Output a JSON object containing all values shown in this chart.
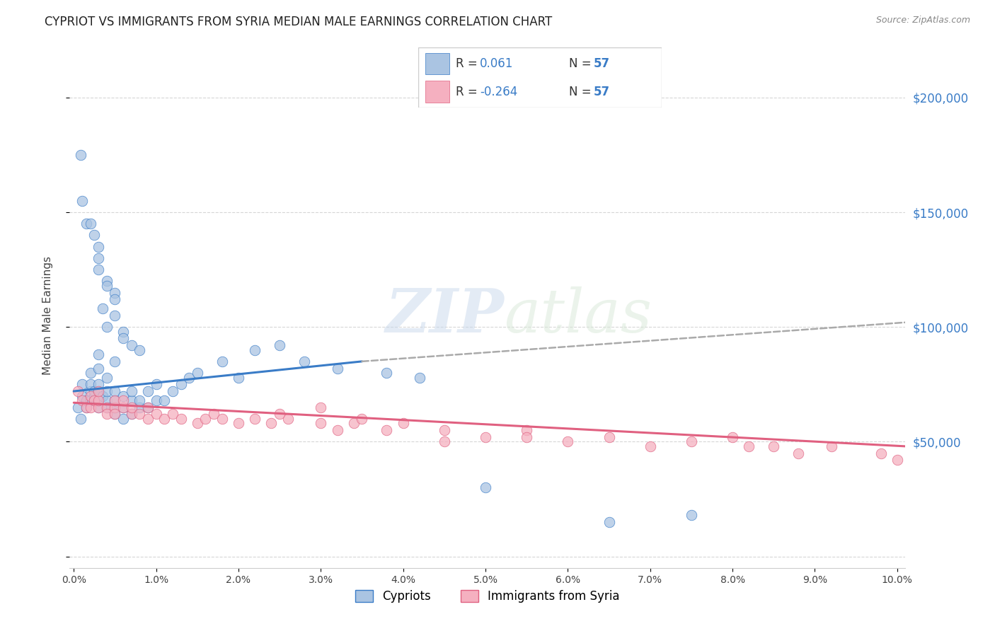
{
  "title": "CYPRIOT VS IMMIGRANTS FROM SYRIA MEDIAN MALE EARNINGS CORRELATION CHART",
  "source": "Source: ZipAtlas.com",
  "ylabel": "Median Male Earnings",
  "yticks": [
    0,
    50000,
    100000,
    150000,
    200000
  ],
  "ytick_labels": [
    "",
    "$50,000",
    "$100,000",
    "$150,000",
    "$200,000"
  ],
  "xmin": -0.0005,
  "xmax": 0.101,
  "ymin": -5000,
  "ymax": 215000,
  "legend_r1": "0.061",
  "legend_n1": "57",
  "legend_r2": "-0.264",
  "legend_n2": "57",
  "watermark_zip": "ZIP",
  "watermark_atlas": "atlas",
  "color_blue": "#aac4e2",
  "color_pink": "#f5b0c0",
  "color_blue_line": "#3a7cc7",
  "color_pink_line": "#e06080",
  "color_dashed": "#aaaaaa",
  "color_rvalue": "#3a7cc7",
  "label_cypriot": "Cypriots",
  "label_syria": "Immigrants from Syria",
  "cypriot_x": [
    0.0005,
    0.0008,
    0.001,
    0.001,
    0.0015,
    0.0015,
    0.002,
    0.002,
    0.002,
    0.002,
    0.0025,
    0.0025,
    0.0025,
    0.003,
    0.003,
    0.003,
    0.003,
    0.003,
    0.0035,
    0.004,
    0.004,
    0.004,
    0.004,
    0.0045,
    0.005,
    0.005,
    0.005,
    0.005,
    0.005,
    0.006,
    0.006,
    0.006,
    0.007,
    0.007,
    0.007,
    0.008,
    0.008,
    0.009,
    0.009,
    0.01,
    0.01,
    0.011,
    0.012,
    0.013,
    0.014,
    0.015,
    0.018,
    0.02,
    0.022,
    0.025,
    0.028,
    0.032,
    0.038,
    0.042,
    0.05,
    0.065,
    0.075
  ],
  "cypriot_y": [
    65000,
    60000,
    75000,
    70000,
    65000,
    68000,
    72000,
    68000,
    75000,
    80000,
    70000,
    68000,
    72000,
    65000,
    68000,
    72000,
    75000,
    82000,
    70000,
    65000,
    68000,
    72000,
    78000,
    65000,
    62000,
    65000,
    68000,
    72000,
    85000,
    60000,
    65000,
    70000,
    62000,
    68000,
    72000,
    65000,
    68000,
    65000,
    72000,
    68000,
    75000,
    68000,
    72000,
    75000,
    78000,
    80000,
    85000,
    78000,
    90000,
    92000,
    85000,
    82000,
    80000,
    78000,
    30000,
    15000,
    18000
  ],
  "cypriot_y_outliers": [
    175000,
    155000,
    145000,
    145000,
    140000,
    135000,
    130000,
    125000,
    120000,
    118000,
    115000,
    112000,
    108000,
    105000,
    100000,
    98000,
    95000,
    92000,
    90000,
    88000
  ],
  "cypriot_x_outliers": [
    0.0008,
    0.001,
    0.0015,
    0.002,
    0.0025,
    0.003,
    0.003,
    0.003,
    0.004,
    0.004,
    0.005,
    0.005,
    0.0035,
    0.005,
    0.004,
    0.006,
    0.006,
    0.007,
    0.008,
    0.003
  ],
  "syria_x": [
    0.0005,
    0.001,
    0.0015,
    0.002,
    0.002,
    0.0025,
    0.003,
    0.003,
    0.003,
    0.004,
    0.004,
    0.005,
    0.005,
    0.005,
    0.006,
    0.006,
    0.007,
    0.007,
    0.008,
    0.009,
    0.009,
    0.01,
    0.011,
    0.012,
    0.013,
    0.015,
    0.016,
    0.017,
    0.018,
    0.02,
    0.022,
    0.024,
    0.026,
    0.03,
    0.032,
    0.034,
    0.038,
    0.04,
    0.045,
    0.05,
    0.055,
    0.06,
    0.065,
    0.07,
    0.075,
    0.08,
    0.082,
    0.085,
    0.088,
    0.092,
    0.098,
    0.1,
    0.03,
    0.025,
    0.035,
    0.045,
    0.055
  ],
  "syria_y": [
    72000,
    68000,
    65000,
    70000,
    65000,
    68000,
    65000,
    68000,
    72000,
    65000,
    62000,
    65000,
    62000,
    68000,
    65000,
    68000,
    62000,
    65000,
    62000,
    60000,
    65000,
    62000,
    60000,
    62000,
    60000,
    58000,
    60000,
    62000,
    60000,
    58000,
    60000,
    58000,
    60000,
    58000,
    55000,
    58000,
    55000,
    58000,
    55000,
    52000,
    55000,
    50000,
    52000,
    48000,
    50000,
    52000,
    48000,
    48000,
    45000,
    48000,
    45000,
    42000,
    65000,
    62000,
    60000,
    50000,
    52000
  ],
  "trend_blue_x0": 0.0,
  "trend_blue_y0": 72000,
  "trend_blue_x1": 0.035,
  "trend_blue_y1": 85000,
  "trend_dashed_x0": 0.035,
  "trend_dashed_y0": 85000,
  "trend_dashed_x1": 0.101,
  "trend_dashed_y1": 102000,
  "trend_pink_x0": 0.0,
  "trend_pink_y0": 67000,
  "trend_pink_x1": 0.101,
  "trend_pink_y1": 48000
}
